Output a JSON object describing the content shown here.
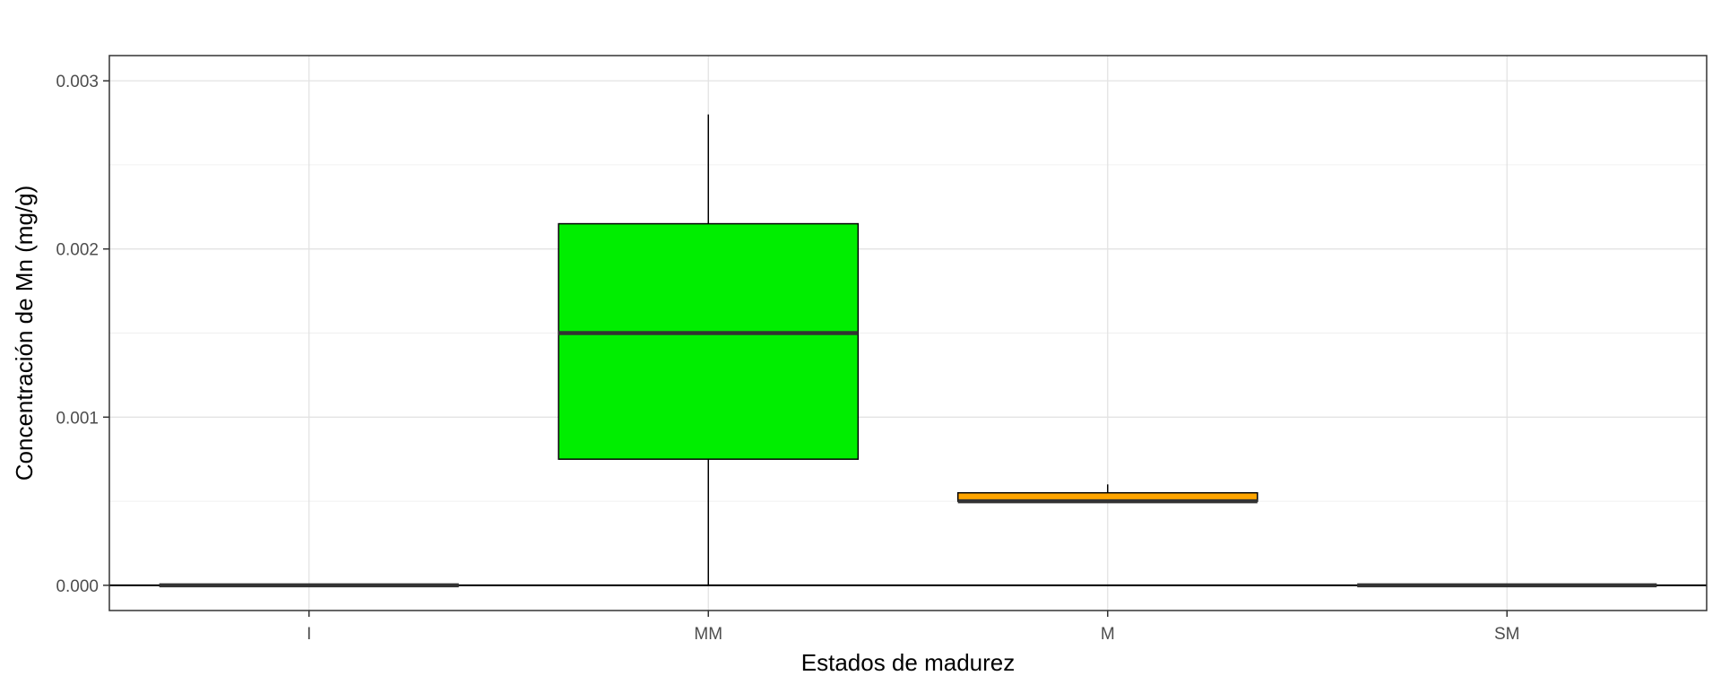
{
  "chart_data": {
    "type": "boxplot",
    "title": "",
    "xlabel": "Estados de madurez",
    "ylabel": "Concentración de Mn (mg/g)",
    "ylim": [
      -0.00015,
      0.00315
    ],
    "y_ticks": [
      0.0,
      0.001,
      0.002,
      0.003
    ],
    "y_tick_labels": [
      "0.000",
      "0.001",
      "0.002",
      "0.003"
    ],
    "grid": true,
    "legend": "none",
    "categories": [
      "I",
      "MM",
      "M",
      "SM"
    ],
    "boxes": [
      {
        "category": "I",
        "min": 0.0,
        "q1": 0.0,
        "median": 0.0,
        "q3": 0.0,
        "max": 0.0,
        "fill": "#000000"
      },
      {
        "category": "MM",
        "min": 0.0,
        "q1": 0.00075,
        "median": 0.0015,
        "q3": 0.00215,
        "max": 0.0028,
        "fill": "#00EE00"
      },
      {
        "category": "M",
        "min": 0.0005,
        "q1": 0.0005,
        "median": 0.0005,
        "q3": 0.00055,
        "max": 0.0006,
        "fill": "#FFA500"
      },
      {
        "category": "SM",
        "min": 0.0,
        "q1": 0.0,
        "median": 0.0,
        "q3": 0.0,
        "max": 0.0,
        "fill": "#000000"
      }
    ],
    "hline": 0.0
  }
}
